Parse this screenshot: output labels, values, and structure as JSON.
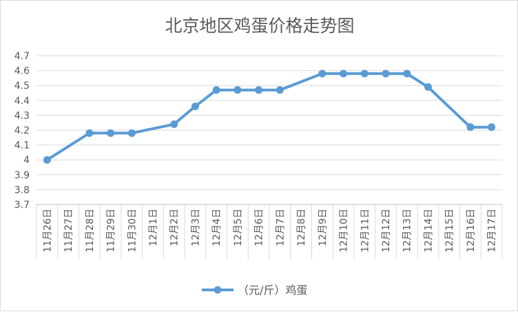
{
  "chart_data": {
    "type": "line",
    "title": "北京地区鸡蛋价格走势图",
    "categories": [
      "11月26日",
      "11月27日",
      "11月28日",
      "11月29日",
      "11月30日",
      "12月1日",
      "12月2日",
      "12月3日",
      "12月4日",
      "12月5日",
      "12月6日",
      "12月7日",
      "12月8日",
      "12月9日",
      "12月10日",
      "12月11日",
      "12月12日",
      "12月13日",
      "12月14日",
      "12月15日",
      "12月16日",
      "12月17日"
    ],
    "series": [
      {
        "name": "（元/斤）鸡蛋",
        "values": [
          4.0,
          null,
          4.18,
          4.18,
          4.18,
          null,
          4.24,
          4.36,
          4.47,
          4.47,
          4.47,
          4.47,
          null,
          4.58,
          4.58,
          4.58,
          4.58,
          4.58,
          4.49,
          null,
          4.22,
          4.22
        ],
        "color": "#5b9bd5"
      }
    ],
    "ylim": [
      3.7,
      4.7
    ],
    "yticks": [
      "3.7",
      "3.8",
      "3.9",
      "4",
      "4.1",
      "4.2",
      "4.3",
      "4.4",
      "4.5",
      "4.6",
      "4.7"
    ],
    "ytick_values": [
      3.7,
      3.8,
      3.9,
      4.0,
      4.1,
      4.2,
      4.3,
      4.4,
      4.5,
      4.6,
      4.7
    ],
    "grid": true,
    "legend": "bottom",
    "connect_gaps": true
  }
}
